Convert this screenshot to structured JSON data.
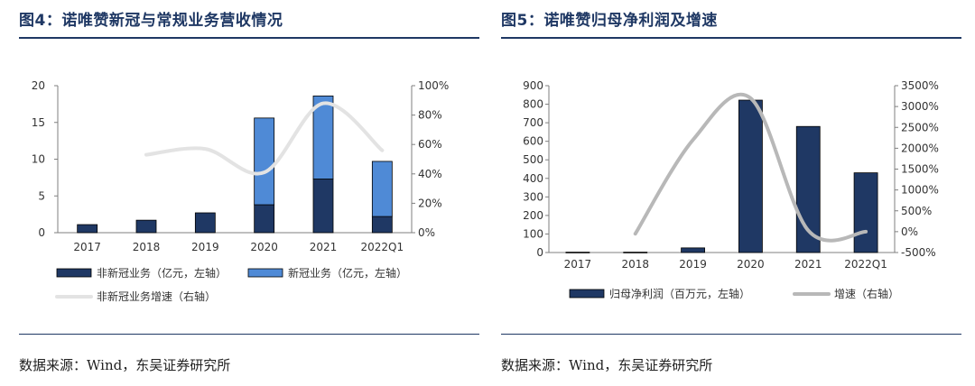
{
  "chart_data": [
    {
      "type": "bar",
      "title": "图4：诺唯赞新冠与常规业务营收情况",
      "categories": [
        "2017",
        "2018",
        "2019",
        "2020",
        "2021",
        "2022Q1"
      ],
      "stacked": true,
      "series": [
        {
          "name": "非新冠业务（亿元，左轴）",
          "type": "bar",
          "axis": "left",
          "color": "#1f3864",
          "values": [
            1.1,
            1.7,
            2.7,
            3.8,
            7.3,
            2.2
          ]
        },
        {
          "name": "新冠业务（亿元，左轴）",
          "type": "bar",
          "axis": "left",
          "color": "#4f8ad6",
          "values": [
            0,
            0,
            0,
            11.8,
            11.3,
            7.5
          ]
        },
        {
          "name": "非新冠业务增速（右轴）",
          "type": "line",
          "axis": "right",
          "color": "#e3e3e3",
          "values": [
            null,
            53,
            57,
            41,
            88,
            56
          ]
        }
      ],
      "yLeft": {
        "min": 0,
        "max": 20,
        "ticks": [
          "0",
          "5",
          "10",
          "15",
          "20"
        ],
        "tickValues": [
          0,
          5,
          10,
          15,
          20
        ]
      },
      "yRight": {
        "min": 0,
        "max": 100,
        "ticks": [
          "0%",
          "20%",
          "40%",
          "60%",
          "80%",
          "100%"
        ],
        "tickValues": [
          0,
          20,
          40,
          60,
          80,
          100
        ]
      },
      "legend_position": "bottom",
      "source": "数据来源：Wind，东吴证券研究所"
    },
    {
      "type": "bar",
      "title": "图5：诺唯赞归母净利润及增速",
      "categories": [
        "2017",
        "2018",
        "2019",
        "2020",
        "2021",
        "2022Q1"
      ],
      "series": [
        {
          "name": "归母净利润（百万元，左轴）",
          "type": "bar",
          "axis": "left",
          "color": "#1f3864",
          "values": [
            2,
            2,
            25,
            822,
            680,
            430
          ]
        },
        {
          "name": "增速（右轴）",
          "type": "line",
          "axis": "right",
          "color": "#b8b8b8",
          "values": [
            null,
            -50,
            2200,
            3200,
            30,
            0
          ]
        }
      ],
      "yLeft": {
        "min": 0,
        "max": 900,
        "ticks": [
          "0",
          "100",
          "200",
          "300",
          "400",
          "500",
          "600",
          "700",
          "800",
          "900"
        ],
        "tickValues": [
          0,
          100,
          200,
          300,
          400,
          500,
          600,
          700,
          800,
          900
        ]
      },
      "yRight": {
        "min": -500,
        "max": 3500,
        "ticks": [
          "-500%",
          "0%",
          "500%",
          "1000%",
          "1500%",
          "2000%",
          "2500%",
          "3000%",
          "3500%"
        ],
        "tickValues": [
          -500,
          0,
          500,
          1000,
          1500,
          2000,
          2500,
          3000,
          3500
        ]
      },
      "legend_position": "bottom",
      "source": "数据来源：Wind，东吴证券研究所"
    }
  ]
}
